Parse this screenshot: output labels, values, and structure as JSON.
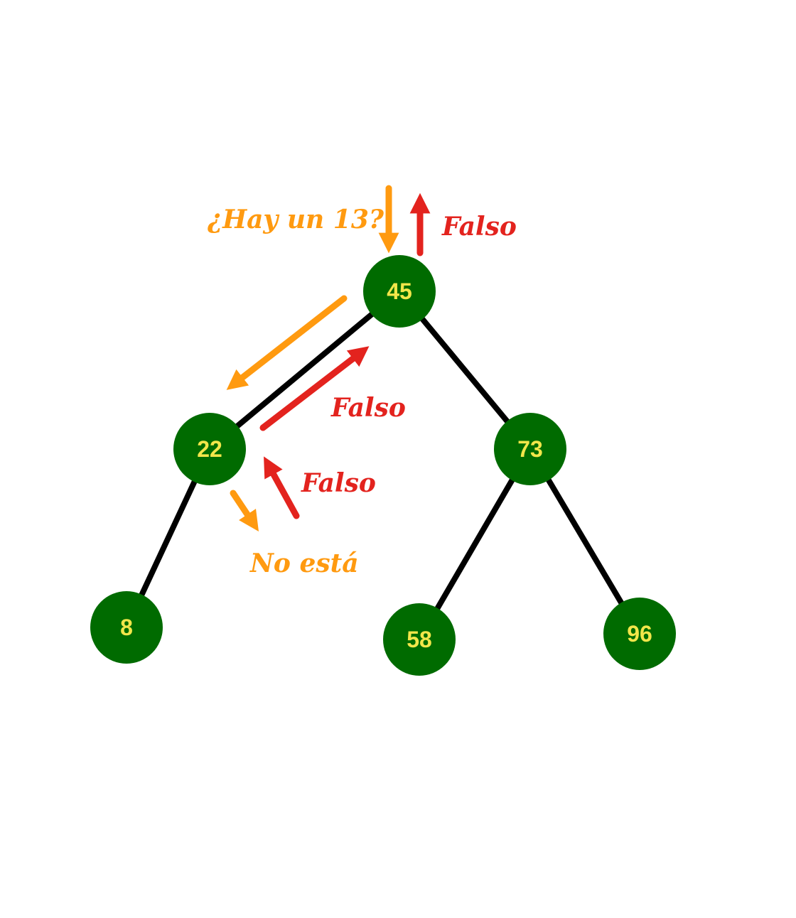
{
  "colors": {
    "node_fill": "#006b00",
    "node_text": "#f2e64a",
    "edge": "#000000",
    "query_arrow": "#ff9a10",
    "return_arrow": "#e3231e"
  },
  "tree": {
    "nodes": {
      "n45": "45",
      "n22": "22",
      "n73": "73",
      "n8": "8",
      "n58": "58",
      "n96": "96"
    }
  },
  "annotations": {
    "query": "¿Hay un 13?",
    "return_root": "Falso",
    "return_edge": "Falso",
    "return_left": "Falso",
    "not_found": "No está"
  }
}
